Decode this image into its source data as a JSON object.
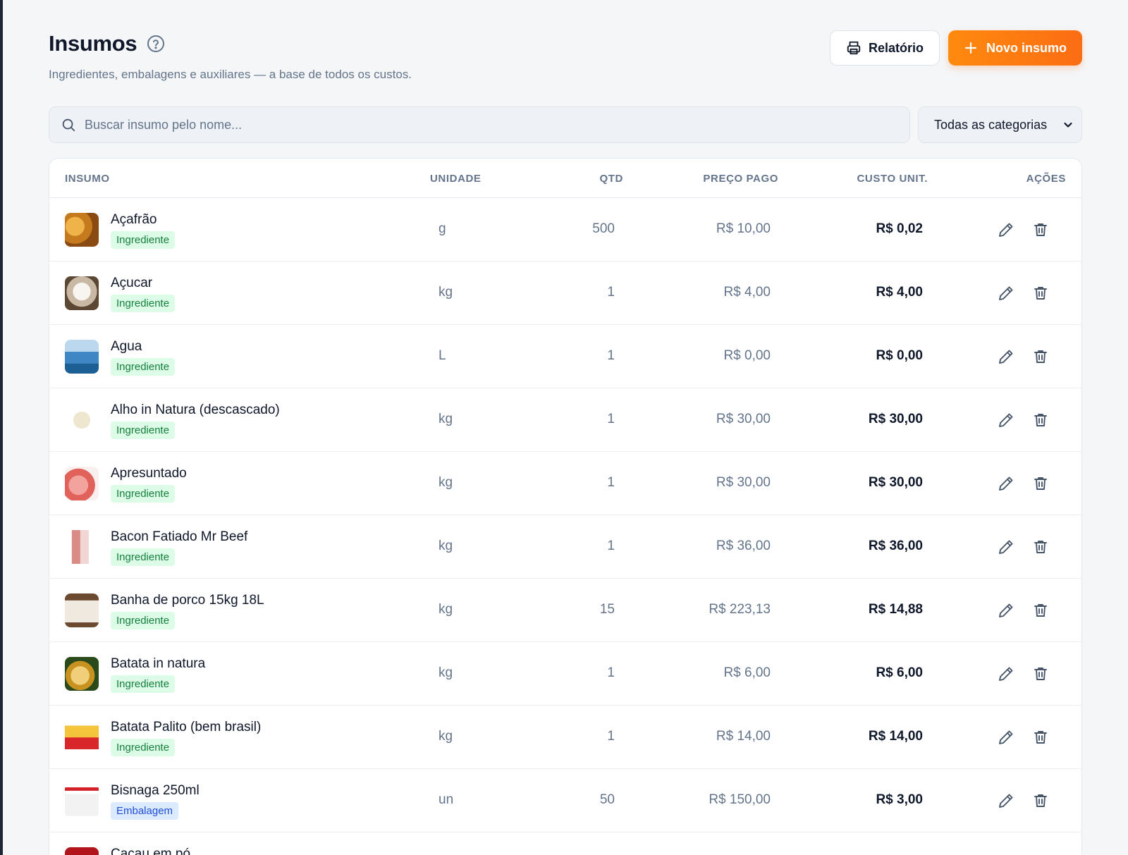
{
  "header": {
    "title": "Insumos",
    "subtitle": "Ingredientes, embalagens e auxiliares — a base de todos os custos.",
    "report_label": "Relatório",
    "new_label": "Novo insumo"
  },
  "search": {
    "placeholder": "Buscar insumo pelo nome..."
  },
  "category_filter": {
    "selected": "Todas as categorias"
  },
  "table": {
    "columns": [
      "INSUMO",
      "UNIDADE",
      "QTD",
      "PREÇO PAGO",
      "CUSTO UNIT.",
      "AÇÕES"
    ],
    "rows": [
      {
        "name": "Açafrão",
        "category": "Ingrediente",
        "unit": "g",
        "qty": "500",
        "price": "R$ 10,00",
        "unit_cost": "R$ 0,02"
      },
      {
        "name": "Açucar",
        "category": "Ingrediente",
        "unit": "kg",
        "qty": "1",
        "price": "R$ 4,00",
        "unit_cost": "R$ 4,00"
      },
      {
        "name": "Agua",
        "category": "Ingrediente",
        "unit": "L",
        "qty": "1",
        "price": "R$ 0,00",
        "unit_cost": "R$ 0,00"
      },
      {
        "name": "Alho in Natura (descascado)",
        "category": "Ingrediente",
        "unit": "kg",
        "qty": "1",
        "price": "R$ 30,00",
        "unit_cost": "R$ 30,00"
      },
      {
        "name": "Apresuntado",
        "category": "Ingrediente",
        "unit": "kg",
        "qty": "1",
        "price": "R$ 30,00",
        "unit_cost": "R$ 30,00"
      },
      {
        "name": "Bacon Fatiado Mr Beef",
        "category": "Ingrediente",
        "unit": "kg",
        "qty": "1",
        "price": "R$ 36,00",
        "unit_cost": "R$ 36,00"
      },
      {
        "name": "Banha de porco 15kg 18L",
        "category": "Ingrediente",
        "unit": "kg",
        "qty": "15",
        "price": "R$ 223,13",
        "unit_cost": "R$ 14,88"
      },
      {
        "name": "Batata in natura",
        "category": "Ingrediente",
        "unit": "kg",
        "qty": "1",
        "price": "R$ 6,00",
        "unit_cost": "R$ 6,00"
      },
      {
        "name": "Batata Palito (bem brasil)",
        "category": "Ingrediente",
        "unit": "kg",
        "qty": "1",
        "price": "R$ 14,00",
        "unit_cost": "R$ 14,00"
      },
      {
        "name": "Bisnaga 250ml",
        "category": "Embalagem",
        "unit": "un",
        "qty": "50",
        "price": "R$ 150,00",
        "unit_cost": "R$ 3,00"
      },
      {
        "name": "Cacau em pó",
        "category": "",
        "unit": "",
        "qty": "",
        "price": "",
        "unit_cost": ""
      }
    ]
  },
  "colors": {
    "accent": "#f97316",
    "ingredient_badge_bg": "#dcfce7",
    "ingredient_badge_text": "#15803d",
    "packaging_badge_bg": "#dbeafe",
    "packaging_badge_text": "#1d4ed8"
  },
  "icons": [
    "help-circle-icon",
    "printer-icon",
    "plus-icon",
    "search-icon",
    "chevron-down-icon",
    "pencil-icon",
    "trash-icon"
  ]
}
